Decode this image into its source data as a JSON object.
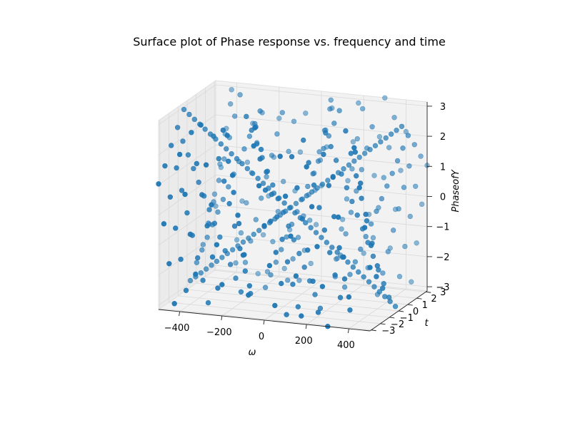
{
  "chart_data": {
    "type": "scatter",
    "title": "Surface plot of Phase response vs. frequency and time",
    "xlabel": "ω",
    "ylabel": "t",
    "zlabel": "PhaseofY",
    "x_ticks": [
      "−400",
      "−200",
      "0",
      "200",
      "400"
    ],
    "y_ticks": [
      "−3",
      "−2",
      "−1",
      "0",
      "1",
      "2",
      "3"
    ],
    "z_ticks": [
      "−3",
      "−2",
      "−1",
      "0",
      "1",
      "2",
      "3"
    ],
    "xlim": [
      -500,
      500
    ],
    "ylim": [
      -3.14,
      3.14
    ],
    "zlim": [
      -3.14,
      3.14
    ],
    "x_grid": [
      -500,
      -400,
      -300,
      -200,
      -100,
      0,
      100,
      200,
      300,
      400,
      500
    ],
    "y_grid": [
      -3.14,
      -2.44,
      -1.75,
      -1.05,
      -0.35,
      0.35,
      1.05,
      1.75,
      2.44,
      3.14
    ],
    "z_formula": "phase = wrap(omega * t)",
    "marker_color": "#1f77b4",
    "grid": true
  }
}
